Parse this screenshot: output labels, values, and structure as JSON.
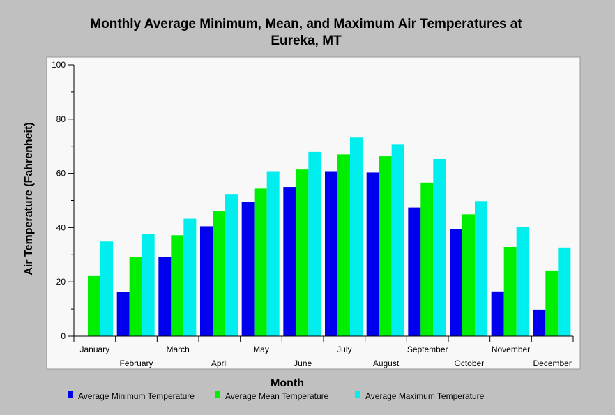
{
  "chart_data": {
    "type": "bar",
    "title_line1": "Monthly Average Minimum, Mean, and Maximum Air Temperatures at",
    "title_line2": "Eureka, MT",
    "xlabel": "Month",
    "ylabel": "Air Temperature (Fahrenheit)",
    "ylim": [
      0,
      100
    ],
    "yticks": [
      "0",
      "20",
      "40",
      "60",
      "80",
      "100"
    ],
    "grid": false,
    "legend_position": "bottom",
    "categories": [
      "January",
      "February",
      "March",
      "April",
      "May",
      "June",
      "July",
      "August",
      "September",
      "October",
      "November",
      "December"
    ],
    "series": [
      {
        "name": "Average Minimum Temperature",
        "color": "#0000ee",
        "values": [
          null,
          16.2,
          29.2,
          40.5,
          49.5,
          55.0,
          60.8,
          60.3,
          47.4,
          39.5,
          16.5,
          9.8
        ]
      },
      {
        "name": "Average Mean Temperature",
        "color": "#00ee00",
        "values": [
          22.4,
          29.3,
          37.2,
          46.0,
          54.4,
          61.4,
          67.0,
          66.3,
          56.6,
          44.9,
          32.9,
          24.2
        ]
      },
      {
        "name": "Average Maximum Temperature",
        "color": "#00eeee",
        "values": [
          34.9,
          37.7,
          43.3,
          52.4,
          60.8,
          67.9,
          73.2,
          70.6,
          65.3,
          49.8,
          40.2,
          32.7
        ]
      }
    ]
  }
}
